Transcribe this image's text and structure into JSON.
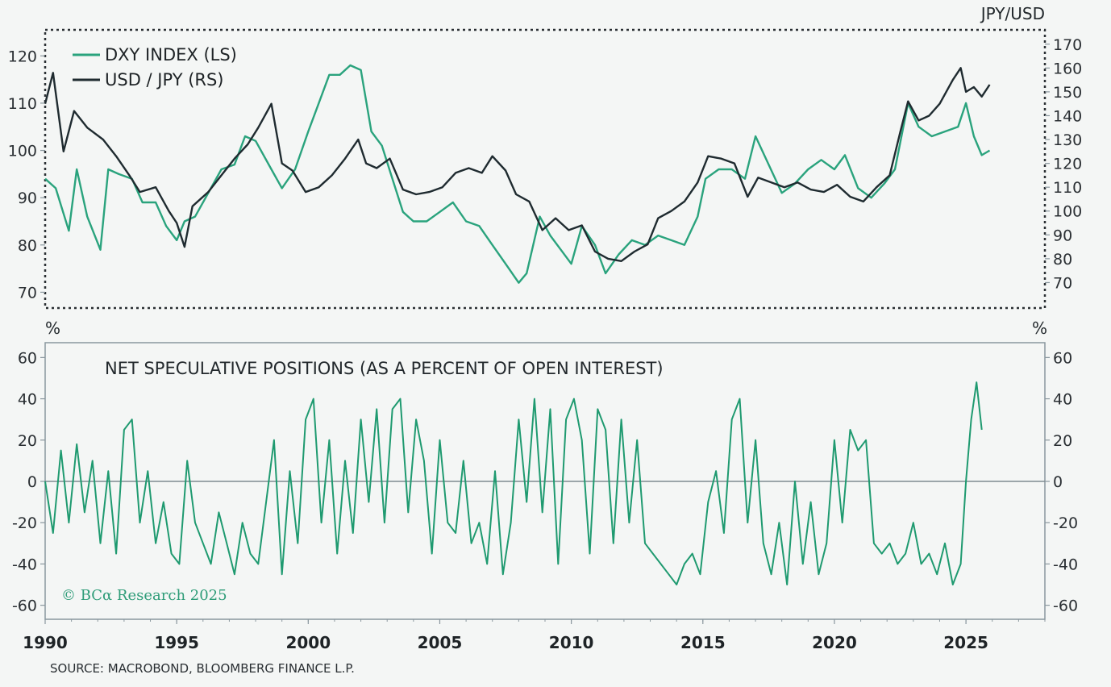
{
  "colors": {
    "dxy": "#2aa37d",
    "usdjpy": "#1f2b30",
    "net": "#1f9a70",
    "frame": "#8a979e",
    "zero": "#7f8c92"
  },
  "chart_data": [
    {
      "type": "line",
      "panel": "top",
      "unit_right": "JPY/USD",
      "legend": "top-left",
      "y_left": {
        "ticks": [
          "120",
          "110",
          "100",
          "90",
          "80",
          "70"
        ],
        "values": [
          120,
          110,
          100,
          90,
          80,
          70
        ],
        "lim": [
          67,
          125
        ]
      },
      "y_right": {
        "ticks": [
          "170",
          "160",
          "150",
          "140",
          "130",
          "120",
          "110",
          "100",
          "90",
          "80",
          "70"
        ],
        "values": [
          170,
          160,
          150,
          140,
          130,
          120,
          110,
          100,
          90,
          80,
          70
        ],
        "lim": [
          60,
          175
        ]
      },
      "series": [
        {
          "name": "DXY INDEX (LS)",
          "axis": "left",
          "x": [
            1990,
            1990.4,
            1990.9,
            1991.2,
            1991.6,
            1992.1,
            1992.4,
            1992.8,
            1993.3,
            1993.7,
            1994.2,
            1994.6,
            1995.0,
            1995.3,
            1995.7,
            1996.2,
            1996.7,
            1997.2,
            1997.6,
            1998.0,
            1998.6,
            1999.0,
            1999.5,
            2000.0,
            2000.4,
            2000.8,
            2001.2,
            2001.6,
            2002.0,
            2002.4,
            2002.8,
            2003.2,
            2003.6,
            2004.0,
            2004.5,
            2005.0,
            2005.5,
            2006.0,
            2006.5,
            2007.0,
            2007.5,
            2008.0,
            2008.3,
            2008.8,
            2009.2,
            2009.6,
            2010.0,
            2010.4,
            2010.9,
            2011.3,
            2011.8,
            2012.3,
            2012.8,
            2013.3,
            2013.8,
            2014.3,
            2014.8,
            2015.1,
            2015.6,
            2016.1,
            2016.6,
            2017.0,
            2017.5,
            2018.0,
            2018.5,
            2019.0,
            2019.5,
            2020.0,
            2020.4,
            2020.9,
            2021.4,
            2021.9,
            2022.3,
            2022.8,
            2023.2,
            2023.7,
            2024.2,
            2024.7,
            2025.0,
            2025.3,
            2025.6,
            2025.9
          ],
          "values": [
            94,
            92,
            83,
            96,
            86,
            79,
            96,
            95,
            94,
            89,
            89,
            84,
            81,
            85,
            86,
            91,
            96,
            97,
            103,
            102,
            96,
            92,
            96,
            104,
            110,
            116,
            116,
            118,
            117,
            104,
            101,
            94,
            87,
            85,
            85,
            87,
            89,
            85,
            84,
            80,
            76,
            72,
            74,
            86,
            82,
            79,
            76,
            84,
            80,
            74,
            78,
            81,
            80,
            82,
            81,
            80,
            86,
            94,
            96,
            96,
            94,
            103,
            97,
            91,
            93,
            96,
            98,
            96,
            99,
            92,
            90,
            93,
            96,
            110,
            105,
            103,
            104,
            105,
            110,
            103,
            99,
            100
          ],
          "color": "#2aa37d"
        },
        {
          "name": "USD / JPY (RS)",
          "axis": "right",
          "x": [
            1990,
            1990.3,
            1990.7,
            1991.1,
            1991.6,
            1992.2,
            1992.7,
            1993.2,
            1993.6,
            1994.2,
            1994.7,
            1995.0,
            1995.3,
            1995.6,
            1996.2,
            1996.7,
            1997.2,
            1997.7,
            1998.1,
            1998.6,
            1999.0,
            1999.4,
            1999.9,
            2000.4,
            2000.9,
            2001.4,
            2001.9,
            2002.2,
            2002.6,
            2003.1,
            2003.6,
            2004.1,
            2004.6,
            2005.1,
            2005.6,
            2006.1,
            2006.6,
            2007.0,
            2007.5,
            2007.9,
            2008.4,
            2008.9,
            2009.4,
            2009.9,
            2010.4,
            2010.9,
            2011.4,
            2011.9,
            2012.4,
            2012.9,
            2013.3,
            2013.8,
            2014.3,
            2014.8,
            2015.2,
            2015.7,
            2016.2,
            2016.7,
            2017.1,
            2017.6,
            2018.1,
            2018.6,
            2019.1,
            2019.6,
            2020.1,
            2020.6,
            2021.1,
            2021.6,
            2022.1,
            2022.5,
            2022.8,
            2023.2,
            2023.6,
            2024.0,
            2024.5,
            2024.8,
            2025.0,
            2025.3,
            2025.6,
            2025.9
          ],
          "values": [
            145,
            158,
            125,
            142,
            135,
            130,
            123,
            115,
            108,
            110,
            100,
            95,
            85,
            102,
            108,
            115,
            122,
            128,
            135,
            145,
            120,
            117,
            108,
            110,
            115,
            122,
            130,
            120,
            118,
            122,
            109,
            107,
            108,
            110,
            116,
            118,
            116,
            123,
            117,
            107,
            104,
            92,
            97,
            92,
            94,
            83,
            80,
            79,
            83,
            86,
            97,
            100,
            104,
            112,
            123,
            122,
            120,
            106,
            114,
            112,
            110,
            112,
            109,
            108,
            111,
            106,
            104,
            110,
            115,
            133,
            146,
            138,
            140,
            145,
            155,
            160,
            150,
            152,
            148,
            153
          ],
          "color": "#1f2b30"
        }
      ]
    },
    {
      "type": "line",
      "panel": "bottom",
      "title": "NET SPECULATIVE POSITIONS (AS A PERCENT OF OPEN INTEREST)",
      "ylabel_left": "%",
      "ylabel_right": "%",
      "y": {
        "ticks": [
          "60",
          "40",
          "20",
          "0",
          "-20",
          "-40",
          "-60"
        ],
        "values": [
          60,
          40,
          20,
          0,
          -20,
          -40,
          -60
        ],
        "lim": [
          -66,
          66
        ]
      },
      "x_ticks": [
        "1990",
        "1995",
        "2000",
        "2005",
        "2010",
        "2015",
        "2020",
        "2025"
      ],
      "x_tick_values": [
        1990,
        1995,
        2000,
        2005,
        2010,
        2015,
        2020,
        2025
      ],
      "xlim": [
        1990,
        2028
      ],
      "series": [
        {
          "name": "Net speculative positions",
          "x": [
            1990,
            1990.3,
            1990.6,
            1990.9,
            1991.2,
            1991.5,
            1991.8,
            1992.1,
            1992.4,
            1992.7,
            1993.0,
            1993.3,
            1993.6,
            1993.9,
            1994.2,
            1994.5,
            1994.8,
            1995.1,
            1995.4,
            1995.7,
            1996.0,
            1996.3,
            1996.6,
            1996.9,
            1997.2,
            1997.5,
            1997.8,
            1998.1,
            1998.4,
            1998.7,
            1999.0,
            1999.3,
            1999.6,
            1999.9,
            2000.2,
            2000.5,
            2000.8,
            2001.1,
            2001.4,
            2001.7,
            2002.0,
            2002.3,
            2002.6,
            2002.9,
            2003.2,
            2003.5,
            2003.8,
            2004.1,
            2004.4,
            2004.7,
            2005.0,
            2005.3,
            2005.6,
            2005.9,
            2006.2,
            2006.5,
            2006.8,
            2007.1,
            2007.4,
            2007.7,
            2008.0,
            2008.3,
            2008.6,
            2008.9,
            2009.2,
            2009.5,
            2009.8,
            2010.1,
            2010.4,
            2010.7,
            2011.0,
            2011.3,
            2011.6,
            2011.9,
            2012.2,
            2012.5,
            2012.8,
            2013.1,
            2013.4,
            2013.7,
            2014.0,
            2014.3,
            2014.6,
            2014.9,
            2015.2,
            2015.5,
            2015.8,
            2016.1,
            2016.4,
            2016.7,
            2017.0,
            2017.3,
            2017.6,
            2017.9,
            2018.2,
            2018.5,
            2018.8,
            2019.1,
            2019.4,
            2019.7,
            2020.0,
            2020.3,
            2020.6,
            2020.9,
            2021.2,
            2021.5,
            2021.8,
            2022.1,
            2022.4,
            2022.7,
            2023.0,
            2023.3,
            2023.6,
            2023.9,
            2024.2,
            2024.5,
            2024.8,
            2025.0,
            2025.2,
            2025.4,
            2025.6
          ],
          "values": [
            0,
            -25,
            15,
            -20,
            18,
            -15,
            10,
            -30,
            5,
            -35,
            25,
            30,
            -20,
            5,
            -30,
            -10,
            -35,
            -40,
            10,
            -20,
            -30,
            -40,
            -15,
            -30,
            -45,
            -20,
            -35,
            -40,
            -10,
            20,
            -45,
            5,
            -30,
            30,
            40,
            -20,
            20,
            -35,
            10,
            -25,
            30,
            -10,
            35,
            -20,
            35,
            40,
            -15,
            30,
            10,
            -35,
            20,
            -20,
            -25,
            10,
            -30,
            -20,
            -40,
            5,
            -45,
            -20,
            30,
            -10,
            40,
            -15,
            35,
            -40,
            30,
            40,
            20,
            -35,
            35,
            25,
            -30,
            30,
            -20,
            20,
            -30,
            -35,
            -40,
            -45,
            -50,
            -40,
            -35,
            -45,
            -10,
            5,
            -25,
            30,
            40,
            -20,
            20,
            -30,
            -45,
            -20,
            -50,
            0,
            -40,
            -10,
            -45,
            -30,
            20,
            -20,
            25,
            15,
            20,
            -30,
            -35,
            -30,
            -40,
            -35,
            -20,
            -40,
            -35,
            -45,
            -30,
            -50,
            -40,
            0,
            30,
            48,
            25
          ],
          "color": "#1f9a70"
        }
      ]
    }
  ],
  "labels": {
    "unit_right": "JPY/USD",
    "legend_dxy": "DXY INDEX (LS)",
    "legend_usdjpy": "USD / JPY (RS)",
    "bottom_title": "NET SPECULATIVE POSITIONS (AS A PERCENT OF OPEN INTEREST)",
    "pct_left": "%",
    "pct_right": "%",
    "watermark": "© BCα Research 2025",
    "source": "SOURCE: MACROBOND, BLOOMBERG FINANCE L.P."
  }
}
